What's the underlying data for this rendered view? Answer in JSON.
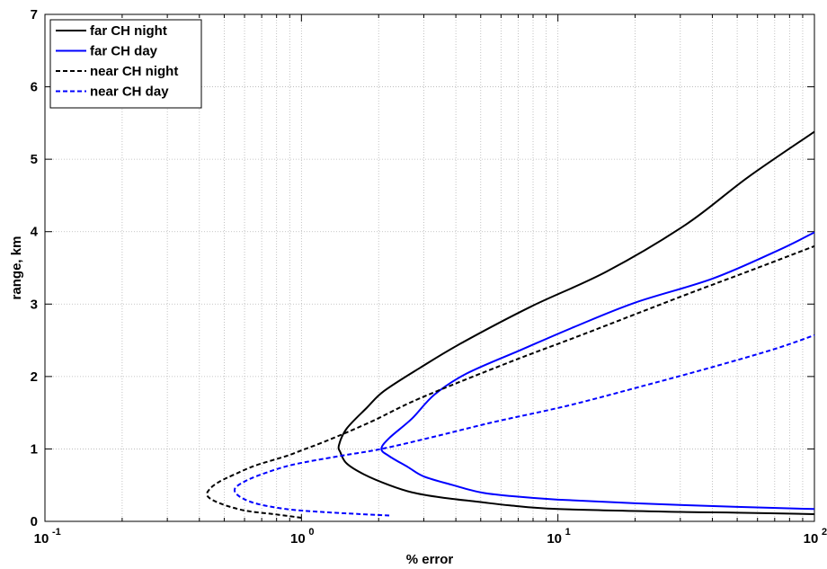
{
  "chart_data": {
    "type": "line",
    "title": "",
    "xlabel": "% error",
    "ylabel": "range, km",
    "xscale": "log",
    "xlim": [
      0.1,
      100
    ],
    "ylim": [
      0,
      7
    ],
    "grid": true,
    "legend_position": "top-left",
    "x_tick_labels": [
      {
        "base": "10",
        "exp": "-1",
        "value": 0.1
      },
      {
        "base": "10",
        "exp": "0",
        "value": 1
      },
      {
        "base": "10",
        "exp": "1",
        "value": 10
      },
      {
        "base": "10",
        "exp": "2",
        "value": 100
      }
    ],
    "y_ticks": [
      0,
      1,
      2,
      3,
      4,
      5,
      6,
      7
    ],
    "series": [
      {
        "name": "far CH night",
        "color": "#000000",
        "dash": "solid",
        "points": [
          [
            100,
            0.1
          ],
          [
            50,
            0.12
          ],
          [
            30,
            0.13
          ],
          [
            10,
            0.17
          ],
          [
            6.5,
            0.22
          ],
          [
            4.9,
            0.27
          ],
          [
            3.5,
            0.33
          ],
          [
            2.7,
            0.4
          ],
          [
            2.2,
            0.5
          ],
          [
            1.75,
            0.65
          ],
          [
            1.5,
            0.8
          ],
          [
            1.42,
            0.95
          ],
          [
            1.4,
            1.05
          ],
          [
            1.5,
            1.28
          ],
          [
            1.8,
            1.57
          ],
          [
            2.1,
            1.8
          ],
          [
            2.9,
            2.12
          ],
          [
            4.2,
            2.46
          ],
          [
            7.9,
            2.97
          ],
          [
            15.5,
            3.45
          ],
          [
            31.6,
            4.1
          ],
          [
            55,
            4.75
          ],
          [
            100,
            5.38
          ]
        ]
      },
      {
        "name": "far CH day",
        "color": "#0000ff",
        "dash": "solid",
        "points": [
          [
            100,
            0.17
          ],
          [
            50,
            0.2
          ],
          [
            20,
            0.25
          ],
          [
            10,
            0.3
          ],
          [
            6.5,
            0.35
          ],
          [
            5,
            0.4
          ],
          [
            3.9,
            0.5
          ],
          [
            3,
            0.62
          ],
          [
            2.6,
            0.75
          ],
          [
            2.2,
            0.9
          ],
          [
            2.05,
            1.0
          ],
          [
            2.2,
            1.15
          ],
          [
            2.7,
            1.42
          ],
          [
            3.3,
            1.75
          ],
          [
            4.4,
            2.04
          ],
          [
            7.2,
            2.37
          ],
          [
            11.5,
            2.68
          ],
          [
            20,
            3.02
          ],
          [
            40,
            3.35
          ],
          [
            72,
            3.74
          ],
          [
            100,
            3.99
          ]
        ]
      },
      {
        "name": "near CH night",
        "color": "#000000",
        "dash": "dashed",
        "points": [
          [
            1.0,
            0.05
          ],
          [
            0.78,
            0.1
          ],
          [
            0.6,
            0.15
          ],
          [
            0.48,
            0.25
          ],
          [
            0.43,
            0.35
          ],
          [
            0.44,
            0.45
          ],
          [
            0.48,
            0.55
          ],
          [
            0.55,
            0.65
          ],
          [
            0.66,
            0.77
          ],
          [
            0.87,
            0.9
          ],
          [
            1.0,
            0.98
          ],
          [
            1.27,
            1.12
          ],
          [
            1.88,
            1.38
          ],
          [
            2.9,
            1.7
          ],
          [
            6.5,
            2.2
          ],
          [
            12.5,
            2.58
          ],
          [
            30,
            3.1
          ],
          [
            60,
            3.5
          ],
          [
            100,
            3.8
          ]
        ]
      },
      {
        "name": "near CH day",
        "color": "#0000ff",
        "dash": "dashed",
        "points": [
          [
            2.2,
            0.08
          ],
          [
            1.7,
            0.1
          ],
          [
            1.2,
            0.13
          ],
          [
            0.87,
            0.17
          ],
          [
            0.66,
            0.25
          ],
          [
            0.57,
            0.35
          ],
          [
            0.55,
            0.45
          ],
          [
            0.6,
            0.55
          ],
          [
            0.7,
            0.65
          ],
          [
            0.92,
            0.78
          ],
          [
            1.4,
            0.9
          ],
          [
            2.05,
            1.0
          ],
          [
            3.3,
            1.17
          ],
          [
            5.6,
            1.37
          ],
          [
            11,
            1.6
          ],
          [
            22,
            1.88
          ],
          [
            40,
            2.13
          ],
          [
            70,
            2.38
          ],
          [
            100,
            2.57
          ]
        ]
      }
    ]
  }
}
